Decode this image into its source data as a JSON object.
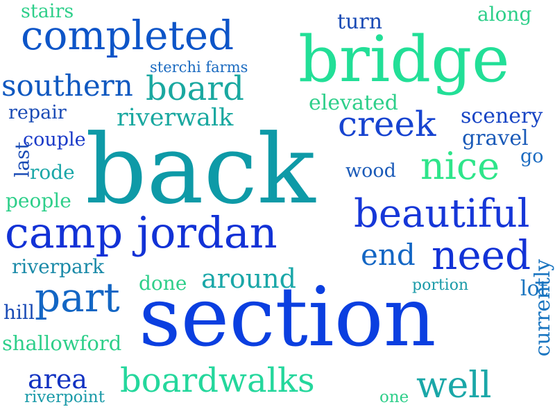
{
  "words": [
    {
      "id": "back",
      "text": "back",
      "color": "#0e9aa7"
    },
    {
      "id": "section",
      "text": "section",
      "color": "#0b3fe0"
    },
    {
      "id": "bridge",
      "text": "bridge",
      "color": "#22df97"
    },
    {
      "id": "camp-jordan",
      "text": "camp jordan",
      "color": "#1232d6"
    },
    {
      "id": "completed",
      "text": "completed",
      "color": "#0d55c8"
    },
    {
      "id": "beautiful",
      "text": "beautiful",
      "color": "#1637d8"
    },
    {
      "id": "part",
      "text": "part",
      "color": "#1366c4"
    },
    {
      "id": "need",
      "text": "need",
      "color": "#1232d6"
    },
    {
      "id": "boardwalks",
      "text": "boardwalks",
      "color": "#24d79c"
    },
    {
      "id": "creek",
      "text": "creek",
      "color": "#1744d0"
    },
    {
      "id": "nice",
      "text": "nice",
      "color": "#2ee58a"
    },
    {
      "id": "board",
      "text": "board",
      "color": "#1aa8a0"
    },
    {
      "id": "well",
      "text": "well",
      "color": "#1aa7a8"
    },
    {
      "id": "southern",
      "text": "southern",
      "color": "#0f58c0"
    },
    {
      "id": "around",
      "text": "around",
      "color": "#1aa7a8"
    },
    {
      "id": "area",
      "text": "area",
      "color": "#1232c2"
    },
    {
      "id": "riverwalk",
      "text": "riverwalk",
      "color": "#1aa8a0"
    },
    {
      "id": "end",
      "text": "end",
      "color": "#1366c4"
    },
    {
      "id": "currently",
      "text": "currently",
      "color": "#1a75c0"
    },
    {
      "id": "scenery",
      "text": "scenery",
      "color": "#1744c4"
    },
    {
      "id": "gravel",
      "text": "gravel",
      "color": "#1a5ab8"
    },
    {
      "id": "elevated",
      "text": "elevated",
      "color": "#2ecf8a"
    },
    {
      "id": "along",
      "text": "along",
      "color": "#2ecf8a"
    },
    {
      "id": "turn",
      "text": "turn",
      "color": "#1a4bb5"
    },
    {
      "id": "shallowford",
      "text": "shallowford",
      "color": "#2ecf8a"
    },
    {
      "id": "riverpark",
      "text": "riverpark",
      "color": "#1a8aa8"
    },
    {
      "id": "wood",
      "text": "wood",
      "color": "#1a5ab8"
    },
    {
      "id": "people",
      "text": "people",
      "color": "#2ecf8a"
    },
    {
      "id": "rode",
      "text": "rode",
      "color": "#1aa7a8"
    },
    {
      "id": "repair",
      "text": "repair",
      "color": "#1a4bb5"
    },
    {
      "id": "couple",
      "text": "couple",
      "color": "#1a3ac8"
    },
    {
      "id": "stairs",
      "text": "stairs",
      "color": "#2ecf8a"
    },
    {
      "id": "sterchi-farms",
      "text": "sterchi farms",
      "color": "#1a6ac0"
    },
    {
      "id": "done",
      "text": "done",
      "color": "#2ecf8a"
    },
    {
      "id": "portion",
      "text": "portion",
      "color": "#1a9aa8"
    },
    {
      "id": "lot",
      "text": "lot",
      "color": "#1a75c0"
    },
    {
      "id": "hill",
      "text": "hill",
      "color": "#1a4bb5"
    },
    {
      "id": "riverpoint",
      "text": "riverpoint",
      "color": "#1a9aa8"
    },
    {
      "id": "one",
      "text": "one",
      "color": "#2ecf8a"
    },
    {
      "id": "go",
      "text": "go",
      "color": "#1a6ac0"
    },
    {
      "id": "last",
      "text": "last",
      "color": "#1a4bb5"
    }
  ]
}
